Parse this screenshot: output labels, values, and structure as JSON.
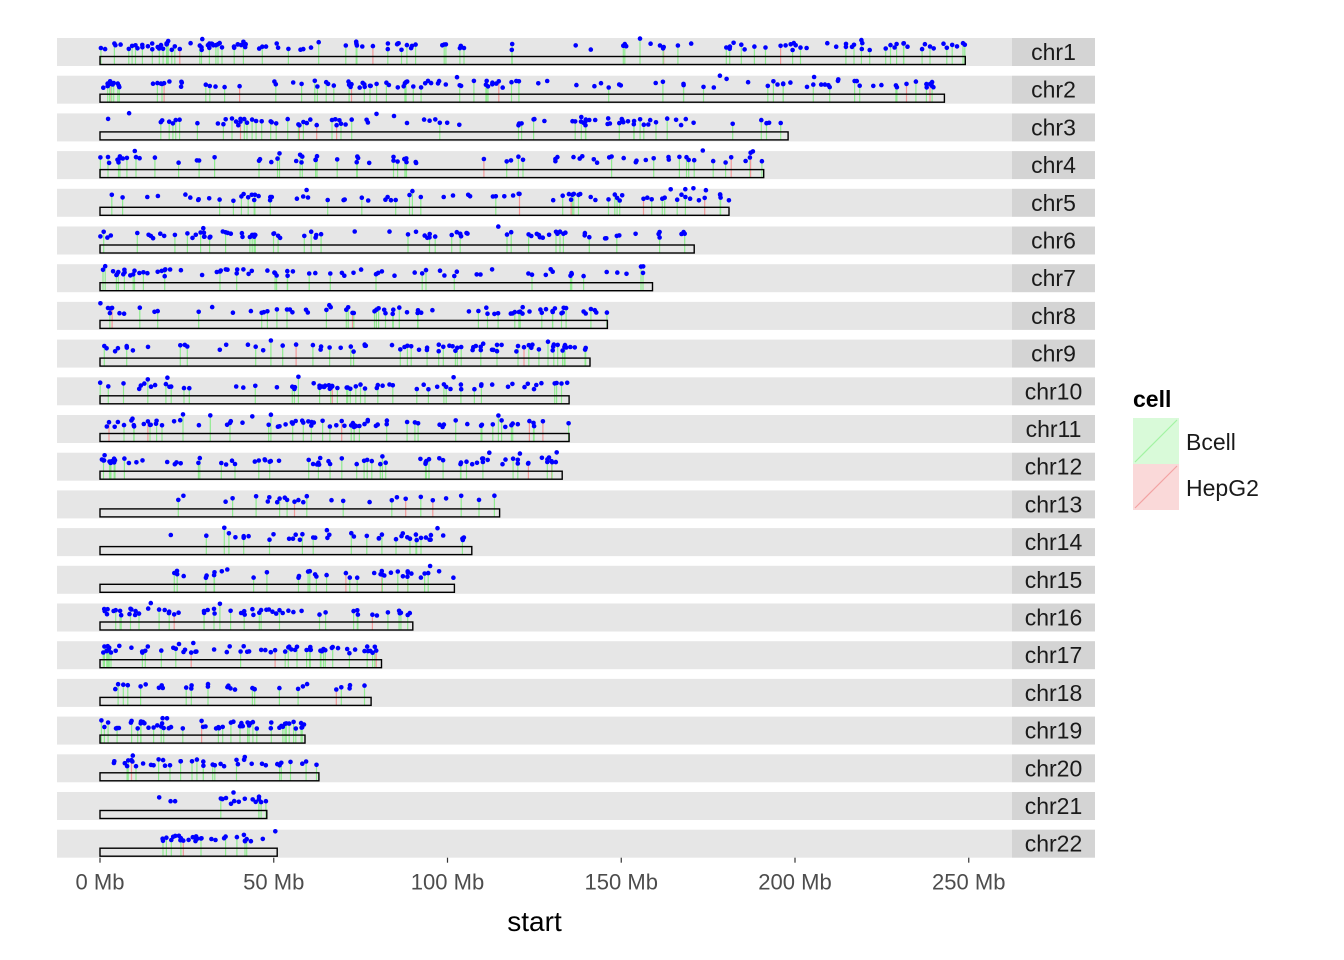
{
  "chart_data": {
    "type": "scatter",
    "title": "",
    "xlabel": "start",
    "ylabel": "",
    "x_unit": "Mb",
    "xlim": [
      0,
      260
    ],
    "x_ticks": [
      0,
      50,
      100,
      150,
      200,
      250
    ],
    "x_tick_labels": [
      "0 Mb",
      "50 Mb",
      "100 Mb",
      "150 Mb",
      "200 Mb",
      "250 Mb"
    ],
    "grid": false,
    "legend": {
      "title": "cell",
      "position": "right",
      "entries": [
        {
          "name": "Bcell",
          "color": "#00E000"
        },
        {
          "name": "HepG2",
          "color": "#E00000"
        }
      ]
    },
    "point_color": "#0000FF",
    "chromosomes": [
      {
        "name": "chr1",
        "length_mb": 249,
        "clusters": [
          [
            0,
            48,
            1.0
          ],
          [
            48,
            100,
            0.45
          ],
          [
            100,
            145,
            0.15
          ],
          [
            145,
            190,
            0.35
          ],
          [
            190,
            249,
            0.55
          ]
        ]
      },
      {
        "name": "chr2",
        "length_mb": 243,
        "clusters": [
          [
            0,
            85,
            0.5
          ],
          [
            85,
            130,
            0.6
          ],
          [
            130,
            165,
            0.2
          ],
          [
            165,
            200,
            0.35
          ],
          [
            200,
            243,
            0.5
          ]
        ]
      },
      {
        "name": "chr3",
        "length_mb": 198,
        "clusters": [
          [
            0,
            35,
            0.25
          ],
          [
            35,
            70,
            0.7
          ],
          [
            70,
            110,
            0.3
          ],
          [
            110,
            150,
            0.45
          ],
          [
            150,
            198,
            0.4
          ]
        ]
      },
      {
        "name": "chr4",
        "length_mb": 191,
        "clusters": [
          [
            0,
            8,
            1.0
          ],
          [
            8,
            60,
            0.3
          ],
          [
            60,
            110,
            0.3
          ],
          [
            110,
            150,
            0.35
          ],
          [
            150,
            191,
            0.45
          ]
        ]
      },
      {
        "name": "chr5",
        "length_mb": 181,
        "clusters": [
          [
            0,
            40,
            0.25
          ],
          [
            40,
            90,
            0.45
          ],
          [
            90,
            130,
            0.25
          ],
          [
            130,
            181,
            0.6
          ]
        ]
      },
      {
        "name": "chr6",
        "length_mb": 171,
        "clusters": [
          [
            0,
            25,
            0.4
          ],
          [
            25,
            45,
            1.0
          ],
          [
            45,
            100,
            0.3
          ],
          [
            100,
            171,
            0.45
          ]
        ]
      },
      {
        "name": "chr7",
        "length_mb": 159,
        "clusters": [
          [
            0,
            8,
            1.0
          ],
          [
            8,
            50,
            0.55
          ],
          [
            50,
            110,
            0.4
          ],
          [
            110,
            159,
            0.3
          ]
        ]
      },
      {
        "name": "chr8",
        "length_mb": 146,
        "clusters": [
          [
            0,
            60,
            0.35
          ],
          [
            60,
            100,
            0.45
          ],
          [
            100,
            146,
            0.6
          ]
        ]
      },
      {
        "name": "chr9",
        "length_mb": 141,
        "clusters": [
          [
            0,
            40,
            0.3
          ],
          [
            40,
            85,
            0.35
          ],
          [
            85,
            141,
            0.75
          ]
        ]
      },
      {
        "name": "chr10",
        "length_mb": 135,
        "clusters": [
          [
            0,
            60,
            0.35
          ],
          [
            60,
            90,
            0.7
          ],
          [
            90,
            135,
            0.5
          ]
        ]
      },
      {
        "name": "chr11",
        "length_mb": 135,
        "clusters": [
          [
            0,
            15,
            0.8
          ],
          [
            15,
            55,
            0.4
          ],
          [
            55,
            80,
            0.95
          ],
          [
            80,
            135,
            0.4
          ]
        ]
      },
      {
        "name": "chr12",
        "length_mb": 133,
        "clusters": [
          [
            0,
            15,
            0.9
          ],
          [
            15,
            90,
            0.4
          ],
          [
            90,
            133,
            0.7
          ]
        ]
      },
      {
        "name": "chr13",
        "length_mb": 115,
        "clusters": [
          [
            20,
            60,
            0.35
          ],
          [
            60,
            115,
            0.2
          ]
        ]
      },
      {
        "name": "chr14",
        "length_mb": 107,
        "clusters": [
          [
            20,
            60,
            0.35
          ],
          [
            60,
            107,
            0.55
          ]
        ]
      },
      {
        "name": "chr15",
        "length_mb": 102,
        "clusters": [
          [
            20,
            60,
            0.35
          ],
          [
            60,
            102,
            0.55
          ]
        ]
      },
      {
        "name": "chr16",
        "length_mb": 90,
        "clusters": [
          [
            0,
            10,
            1.0
          ],
          [
            10,
            35,
            0.6
          ],
          [
            35,
            90,
            0.5
          ]
        ]
      },
      {
        "name": "chr17",
        "length_mb": 81,
        "clusters": [
          [
            0,
            50,
            0.65
          ],
          [
            50,
            81,
            0.85
          ]
        ]
      },
      {
        "name": "chr18",
        "length_mb": 78,
        "clusters": [
          [
            0,
            78,
            0.35
          ]
        ]
      },
      {
        "name": "chr19",
        "length_mb": 59,
        "clusters": [
          [
            0,
            20,
            1.0
          ],
          [
            20,
            35,
            0.5
          ],
          [
            35,
            59,
            1.0
          ]
        ]
      },
      {
        "name": "chr20",
        "length_mb": 63,
        "clusters": [
          [
            0,
            10,
            0.7
          ],
          [
            10,
            63,
            0.55
          ]
        ]
      },
      {
        "name": "chr21",
        "length_mb": 48,
        "clusters": [
          [
            8,
            35,
            0.15
          ],
          [
            35,
            48,
            0.9
          ]
        ]
      },
      {
        "name": "chr22",
        "length_mb": 51,
        "clusters": [
          [
            17,
            51,
            0.8
          ]
        ]
      }
    ]
  }
}
